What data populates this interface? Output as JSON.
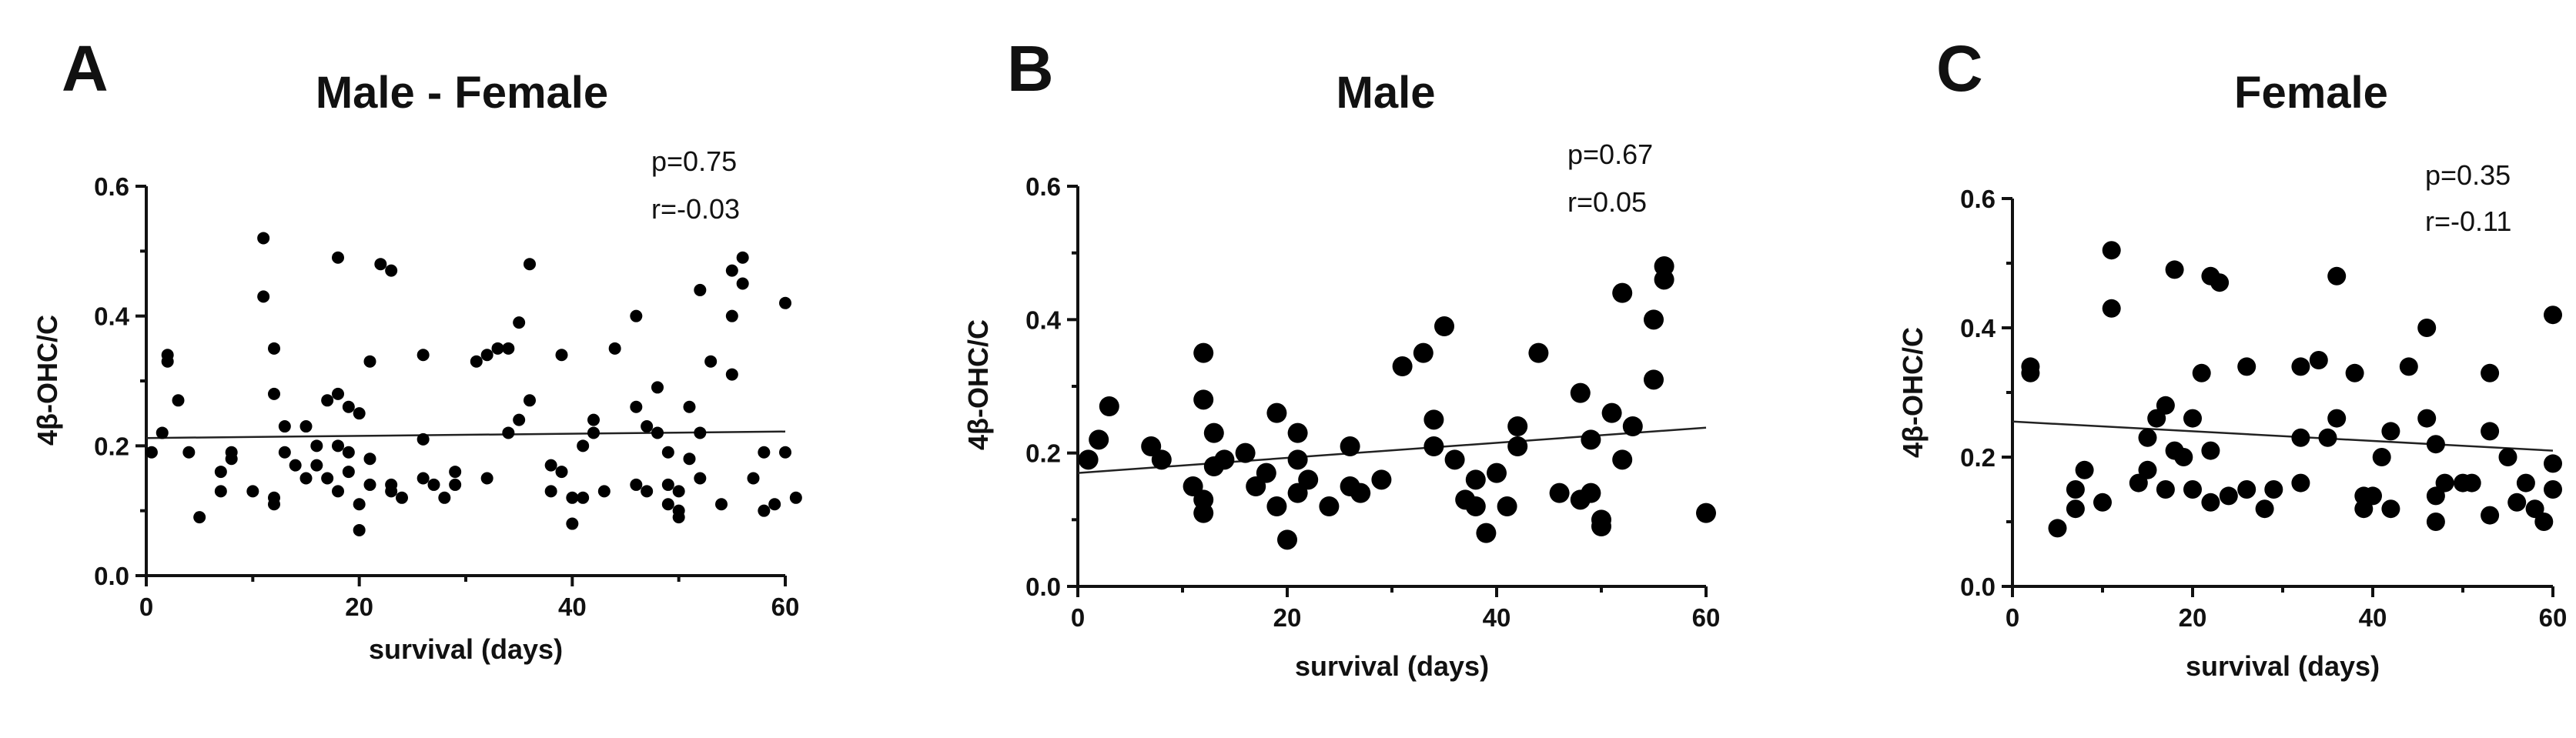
{
  "chart_data": [
    {
      "type": "scatter",
      "panel_label": "A",
      "title": "Male - Female",
      "xlabel": "survival (days)",
      "ylabel": "4β-OHC/C",
      "xlim": [
        0,
        60
      ],
      "ylim": [
        0.0,
        0.6
      ],
      "xticks": [
        "0",
        "20",
        "40",
        "60"
      ],
      "yticks": [
        "0.0",
        "0.2",
        "0.4",
        "0.6"
      ],
      "grid": false,
      "annotations": [
        "p=0.75",
        "r=-0.03"
      ],
      "trendline": {
        "x": [
          0,
          60
        ],
        "y": [
          0.212,
          0.222
        ]
      },
      "points": [
        [
          0.5,
          0.19
        ],
        [
          1.5,
          0.22
        ],
        [
          2,
          0.34
        ],
        [
          2,
          0.33
        ],
        [
          3,
          0.27
        ],
        [
          4,
          0.19
        ],
        [
          5,
          0.09
        ],
        [
          7,
          0.13
        ],
        [
          7,
          0.16
        ],
        [
          8,
          0.18
        ],
        [
          8,
          0.19
        ],
        [
          10,
          0.13
        ],
        [
          11,
          0.52
        ],
        [
          11,
          0.43
        ],
        [
          12,
          0.35
        ],
        [
          12,
          0.28
        ],
        [
          12,
          0.12
        ],
        [
          12,
          0.11
        ],
        [
          13,
          0.19
        ],
        [
          13,
          0.23
        ],
        [
          14,
          0.17
        ],
        [
          15,
          0.15
        ],
        [
          15,
          0.23
        ],
        [
          16,
          0.17
        ],
        [
          16,
          0.2
        ],
        [
          17,
          0.15
        ],
        [
          17,
          0.27
        ],
        [
          18,
          0.49
        ],
        [
          18,
          0.28
        ],
        [
          18,
          0.2
        ],
        [
          18,
          0.13
        ],
        [
          19,
          0.19
        ],
        [
          19,
          0.16
        ],
        [
          19,
          0.26
        ],
        [
          20,
          0.07
        ],
        [
          20,
          0.11
        ],
        [
          20,
          0.25
        ],
        [
          21,
          0.14
        ],
        [
          21,
          0.33
        ],
        [
          21,
          0.18
        ],
        [
          22,
          0.48
        ],
        [
          23,
          0.47
        ],
        [
          23,
          0.13
        ],
        [
          23,
          0.14
        ],
        [
          24,
          0.12
        ],
        [
          26,
          0.34
        ],
        [
          26,
          0.15
        ],
        [
          26,
          0.21
        ],
        [
          27,
          0.14
        ],
        [
          28,
          0.12
        ],
        [
          29,
          0.16
        ],
        [
          29,
          0.14
        ],
        [
          31,
          0.33
        ],
        [
          32,
          0.34
        ],
        [
          32,
          0.15
        ],
        [
          33,
          0.35
        ],
        [
          34,
          0.35
        ],
        [
          34,
          0.22
        ],
        [
          35,
          0.39
        ],
        [
          35,
          0.24
        ],
        [
          36,
          0.27
        ],
        [
          36,
          0.48
        ],
        [
          38,
          0.17
        ],
        [
          38,
          0.13
        ],
        [
          39,
          0.34
        ],
        [
          39,
          0.16
        ],
        [
          40,
          0.12
        ],
        [
          40,
          0.08
        ],
        [
          41,
          0.12
        ],
        [
          41,
          0.2
        ],
        [
          42,
          0.22
        ],
        [
          42,
          0.24
        ],
        [
          43,
          0.13
        ],
        [
          44,
          0.35
        ],
        [
          46,
          0.4
        ],
        [
          46,
          0.26
        ],
        [
          46,
          0.14
        ],
        [
          47,
          0.13
        ],
        [
          47,
          0.23
        ],
        [
          48,
          0.29
        ],
        [
          48,
          0.22
        ],
        [
          49,
          0.14
        ],
        [
          49,
          0.11
        ],
        [
          49,
          0.19
        ],
        [
          50,
          0.13
        ],
        [
          50,
          0.1
        ],
        [
          50,
          0.09
        ],
        [
          51,
          0.26
        ],
        [
          51,
          0.18
        ],
        [
          52,
          0.44
        ],
        [
          52,
          0.15
        ],
        [
          52,
          0.22
        ],
        [
          53,
          0.33
        ],
        [
          54,
          0.11
        ],
        [
          55,
          0.31
        ],
        [
          55,
          0.4
        ],
        [
          55,
          0.47
        ],
        [
          56,
          0.49
        ],
        [
          56,
          0.45
        ],
        [
          57,
          0.15
        ],
        [
          58,
          0.1
        ],
        [
          58,
          0.19
        ],
        [
          59,
          0.11
        ],
        [
          60,
          0.42
        ],
        [
          60,
          0.19
        ],
        [
          61,
          0.12
        ]
      ]
    },
    {
      "type": "scatter",
      "panel_label": "B",
      "title": "Male",
      "xlabel": "survival (days)",
      "ylabel": "4β-OHC/C",
      "xlim": [
        0,
        60
      ],
      "ylim": [
        0.0,
        0.6
      ],
      "xticks": [
        "0",
        "20",
        "40",
        "60"
      ],
      "yticks": [
        "0.0",
        "0.2",
        "0.4",
        "0.6"
      ],
      "grid": false,
      "annotations": [
        "p=0.67",
        "r=0.05"
      ],
      "trendline": {
        "x": [
          0,
          60
        ],
        "y": [
          0.17,
          0.238
        ]
      },
      "points": [
        [
          1,
          0.19
        ],
        [
          2,
          0.22
        ],
        [
          3,
          0.27
        ],
        [
          7,
          0.21
        ],
        [
          8,
          0.19
        ],
        [
          11,
          0.15
        ],
        [
          12,
          0.35
        ],
        [
          12,
          0.28
        ],
        [
          12,
          0.11
        ],
        [
          12,
          0.13
        ],
        [
          13,
          0.18
        ],
        [
          13,
          0.23
        ],
        [
          14,
          0.19
        ],
        [
          16,
          0.2
        ],
        [
          17,
          0.15
        ],
        [
          18,
          0.17
        ],
        [
          19,
          0.26
        ],
        [
          19,
          0.12
        ],
        [
          20,
          0.07
        ],
        [
          21,
          0.19
        ],
        [
          21,
          0.14
        ],
        [
          21,
          0.23
        ],
        [
          22,
          0.16
        ],
        [
          24,
          0.12
        ],
        [
          26,
          0.21
        ],
        [
          26,
          0.15
        ],
        [
          27,
          0.14
        ],
        [
          29,
          0.16
        ],
        [
          31,
          0.33
        ],
        [
          33,
          0.35
        ],
        [
          34,
          0.25
        ],
        [
          34,
          0.21
        ],
        [
          35,
          0.39
        ],
        [
          36,
          0.19
        ],
        [
          37,
          0.13
        ],
        [
          38,
          0.12
        ],
        [
          38,
          0.16
        ],
        [
          39,
          0.08
        ],
        [
          40,
          0.17
        ],
        [
          41,
          0.12
        ],
        [
          42,
          0.24
        ],
        [
          42,
          0.21
        ],
        [
          44,
          0.35
        ],
        [
          46,
          0.14
        ],
        [
          48,
          0.29
        ],
        [
          48,
          0.13
        ],
        [
          49,
          0.22
        ],
        [
          49,
          0.14
        ],
        [
          50,
          0.1
        ],
        [
          50,
          0.09
        ],
        [
          51,
          0.26
        ],
        [
          52,
          0.44
        ],
        [
          52,
          0.19
        ],
        [
          53,
          0.24
        ],
        [
          55,
          0.31
        ],
        [
          55,
          0.4
        ],
        [
          56,
          0.48
        ],
        [
          56,
          0.46
        ],
        [
          60,
          0.11
        ]
      ]
    },
    {
      "type": "scatter",
      "panel_label": "C",
      "title": "Female",
      "xlabel": "survival (days)",
      "ylabel": "4β-OHC/C",
      "xlim": [
        0,
        60
      ],
      "ylim": [
        0.0,
        0.6
      ],
      "xticks": [
        "0",
        "20",
        "40",
        "60"
      ],
      "yticks": [
        "0.0",
        "0.2",
        "0.4",
        "0.6"
      ],
      "grid": false,
      "annotations": [
        "p=0.35",
        "r=-0.11"
      ],
      "trendline": {
        "x": [
          0,
          60
        ],
        "y": [
          0.255,
          0.21
        ]
      },
      "points": [
        [
          2,
          0.34
        ],
        [
          2,
          0.33
        ],
        [
          5,
          0.09
        ],
        [
          7,
          0.12
        ],
        [
          7,
          0.15
        ],
        [
          8,
          0.18
        ],
        [
          10,
          0.13
        ],
        [
          11,
          0.52
        ],
        [
          11,
          0.43
        ],
        [
          14,
          0.16
        ],
        [
          15,
          0.23
        ],
        [
          15,
          0.18
        ],
        [
          16,
          0.26
        ],
        [
          17,
          0.28
        ],
        [
          17,
          0.15
        ],
        [
          18,
          0.49
        ],
        [
          18,
          0.21
        ],
        [
          19,
          0.2
        ],
        [
          20,
          0.15
        ],
        [
          20,
          0.26
        ],
        [
          21,
          0.33
        ],
        [
          22,
          0.48
        ],
        [
          22,
          0.21
        ],
        [
          22,
          0.13
        ],
        [
          23,
          0.47
        ],
        [
          24,
          0.14
        ],
        [
          26,
          0.34
        ],
        [
          26,
          0.15
        ],
        [
          28,
          0.12
        ],
        [
          29,
          0.15
        ],
        [
          32,
          0.34
        ],
        [
          32,
          0.23
        ],
        [
          32,
          0.16
        ],
        [
          34,
          0.35
        ],
        [
          35,
          0.23
        ],
        [
          36,
          0.48
        ],
        [
          36,
          0.26
        ],
        [
          38,
          0.33
        ],
        [
          39,
          0.14
        ],
        [
          39,
          0.12
        ],
        [
          40,
          0.14
        ],
        [
          41,
          0.2
        ],
        [
          42,
          0.24
        ],
        [
          42,
          0.12
        ],
        [
          44,
          0.34
        ],
        [
          46,
          0.4
        ],
        [
          46,
          0.26
        ],
        [
          47,
          0.22
        ],
        [
          47,
          0.14
        ],
        [
          47,
          0.1
        ],
        [
          48,
          0.16
        ],
        [
          50,
          0.16
        ],
        [
          51,
          0.16
        ],
        [
          53,
          0.33
        ],
        [
          53,
          0.24
        ],
        [
          53,
          0.11
        ],
        [
          55,
          0.2
        ],
        [
          56,
          0.13
        ],
        [
          57,
          0.16
        ],
        [
          58,
          0.12
        ],
        [
          59,
          0.1
        ],
        [
          60,
          0.42
        ],
        [
          60,
          0.19
        ],
        [
          60,
          0.15
        ]
      ]
    }
  ]
}
